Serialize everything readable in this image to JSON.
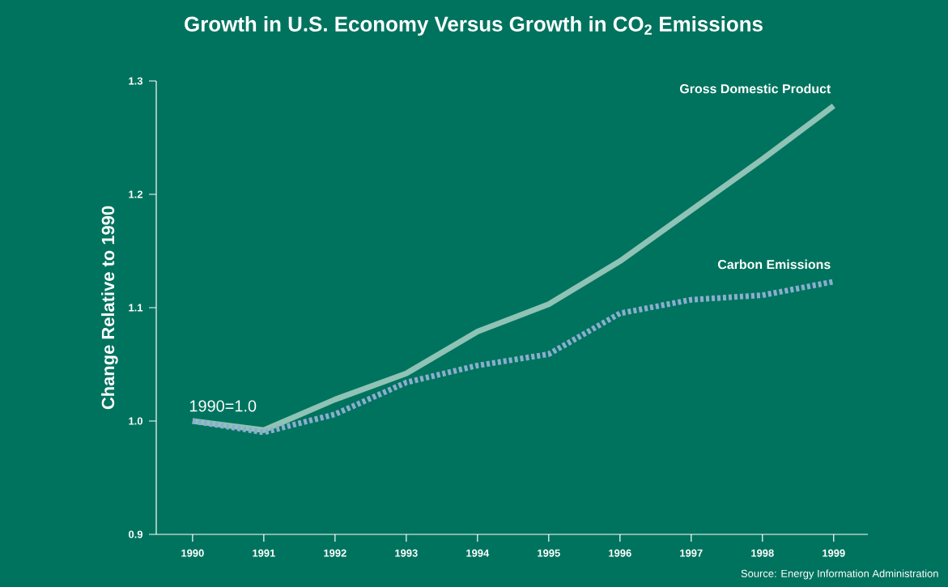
{
  "chart_data": {
    "type": "line",
    "title": "Growth in U.S. Economy Versus Growth in CO$_{2}$ Emissions",
    "ylabel": "Change Relative to 1990",
    "x": [
      1990,
      1991,
      1992,
      1993,
      1994,
      1995,
      1996,
      1997,
      1998,
      1999
    ],
    "series": [
      {
        "name": "Gross Domestic Product",
        "color": "#8fc3b6",
        "line_style": "solid",
        "values": [
          1.0,
          0.992,
          1.019,
          1.042,
          1.079,
          1.103,
          1.141,
          1.186,
          1.231,
          1.278
        ]
      },
      {
        "name": "Carbon Emissions",
        "color": "#8aaecf",
        "line_style": "dotted",
        "values": [
          1.0,
          0.99,
          1.006,
          1.034,
          1.049,
          1.059,
          1.095,
          1.107,
          1.111,
          1.123
        ]
      }
    ],
    "xlim": [
      1989.49,
      1999.48
    ],
    "ylim": [
      0.9,
      1.3
    ],
    "xticks": [
      1990,
      1991,
      1992,
      1993,
      1994,
      1995,
      1996,
      1997,
      1998,
      1999
    ],
    "yticks": [
      {
        "value": 0.9,
        "label": "0.9"
      },
      {
        "value": 1.0,
        "label": "1.0"
      },
      {
        "value": 1.1,
        "label": "1.1"
      },
      {
        "value": 1.2,
        "label": "1.2"
      },
      {
        "value": 1.3,
        "label": "1.3"
      }
    ],
    "annotations": [
      {
        "text": "1990=1.0",
        "x": 1990,
        "y": 1.0
      },
      "Source: Energy Information Administration"
    ]
  }
}
